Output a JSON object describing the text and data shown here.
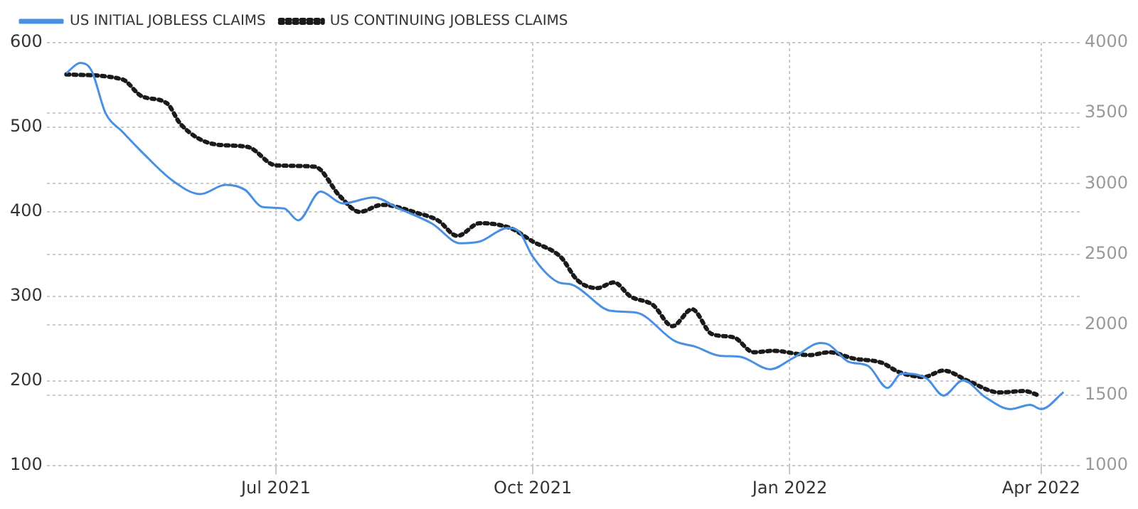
{
  "chart_data": {
    "type": "line",
    "xlim": [
      "2021-04-10",
      "2022-04-15"
    ],
    "xticks": [
      {
        "value": "2021-07-01",
        "label": "Jul 2021"
      },
      {
        "value": "2021-10-01",
        "label": "Oct 2021"
      },
      {
        "value": "2022-01-01",
        "label": "Jan 2022"
      },
      {
        "value": "2022-04-01",
        "label": "Apr 2022"
      }
    ],
    "ylim": [
      100,
      600
    ],
    "yticks": [
      100,
      200,
      300,
      400,
      500,
      600
    ],
    "y2lim": [
      1000,
      4000
    ],
    "y2ticks": [
      1000,
      1500,
      2000,
      2500,
      3000,
      3500,
      4000
    ],
    "grid": true,
    "legend": "top left",
    "marker": "none",
    "series": [
      {
        "name": "US INITIAL JOBLESS CLAIMS",
        "color": "#4a90e2",
        "line_style": "solid",
        "x": [
          "2021-04-17",
          "2021-04-22",
          "2021-04-26",
          "2021-05-01",
          "2021-05-07",
          "2021-05-14",
          "2021-05-25",
          "2021-06-04",
          "2021-06-13",
          "2021-06-20",
          "2021-06-26",
          "2021-07-04",
          "2021-07-09",
          "2021-07-17",
          "2021-07-25",
          "2021-08-05",
          "2021-08-14",
          "2021-08-26",
          "2021-09-05",
          "2021-09-12",
          "2021-09-22",
          "2021-09-26",
          "2021-10-01",
          "2021-10-10",
          "2021-10-15",
          "2021-10-29",
          "2021-11-07",
          "2021-11-21",
          "2021-11-28",
          "2021-12-07",
          "2021-12-14",
          "2021-12-25",
          "2022-01-02",
          "2022-01-12",
          "2022-01-15",
          "2022-01-22",
          "2022-01-29",
          "2022-02-05",
          "2022-02-10",
          "2022-02-19",
          "2022-02-25",
          "2022-03-04",
          "2022-03-12",
          "2022-03-21",
          "2022-03-28",
          "2022-04-01",
          "2022-04-09"
        ],
        "values": [
          564,
          576,
          567,
          517,
          495,
          471,
          437,
          421,
          432,
          426,
          406,
          404,
          390,
          424,
          410,
          417,
          404,
          386,
          363,
          365,
          381,
          377,
          347,
          317,
          314,
          283,
          281,
          247,
          241,
          230,
          229,
          214,
          227,
          245,
          243,
          223,
          218,
          192,
          209,
          203,
          183,
          201,
          181,
          167,
          172,
          167,
          187
        ]
      },
      {
        "name": "US CONTINUING JOBLESS CLAIMS",
        "color": "#1a1a1a",
        "line_style": "dotted",
        "axis": "y2",
        "x": [
          "2021-04-17",
          "2021-05-07",
          "2021-05-14",
          "2021-05-23",
          "2021-05-28",
          "2021-06-09",
          "2021-06-21",
          "2021-07-01",
          "2021-07-15",
          "2021-07-24",
          "2021-07-31",
          "2021-08-08",
          "2021-08-21",
          "2021-08-28",
          "2021-09-04",
          "2021-09-12",
          "2021-09-23",
          "2021-10-01",
          "2021-10-11",
          "2021-10-17",
          "2021-10-24",
          "2021-10-30",
          "2021-11-05",
          "2021-11-13",
          "2021-11-20",
          "2021-11-27",
          "2021-12-04",
          "2021-12-12",
          "2021-12-19",
          "2021-12-26",
          "2022-01-08",
          "2022-01-15",
          "2022-01-24",
          "2022-02-03",
          "2022-02-09",
          "2022-02-18",
          "2022-02-25",
          "2022-03-06",
          "2022-03-17",
          "2022-03-26",
          "2022-03-31"
        ],
        "values": [
          3775,
          3740,
          3620,
          3570,
          3420,
          3280,
          3260,
          3130,
          3120,
          2910,
          2800,
          2850,
          2790,
          2740,
          2630,
          2720,
          2685,
          2590,
          2480,
          2315,
          2260,
          2300,
          2200,
          2140,
          1990,
          2110,
          1935,
          1910,
          1805,
          1815,
          1785,
          1805,
          1760,
          1730,
          1665,
          1630,
          1675,
          1600,
          1520,
          1530,
          1500
        ]
      }
    ]
  }
}
